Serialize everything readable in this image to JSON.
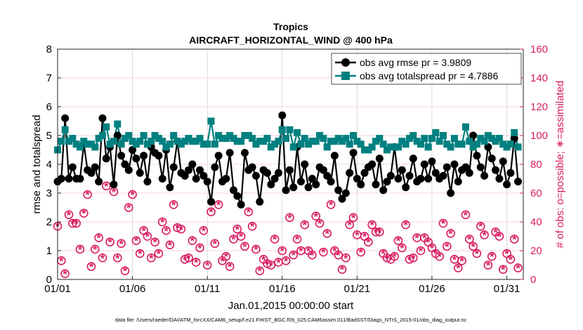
{
  "chart_data": {
    "type": "line",
    "title": "Tropics",
    "subtitle": "AIRCRAFT_HORIZONTAL_WIND @ 400 hPa",
    "xlabel": "Jan.01,2015 00:00:00 start",
    "ylabel": "rmse and totalspread",
    "y2label": "# of obs: o=possible; ∗=assimilated",
    "footnote": "data file: /Users/raeder/DAI/ATM_forcXX/CAM6_setup/f.e21.FHIST_BGC.f09_025.CAM6assim.011/BadSST/Diags_NTrS_2015-01/obs_diag_output.nc",
    "xlim": [
      1,
      32.1
    ],
    "ylim": [
      0,
      8
    ],
    "y2lim": [
      0,
      160
    ],
    "x_step_days": 0.25,
    "x_ticks": [
      1,
      6,
      11,
      16,
      21,
      26,
      31
    ],
    "x_tick_labels": [
      "01/01",
      "01/06",
      "01/11",
      "01/16",
      "01/21",
      "01/26",
      "01/31"
    ],
    "y_ticks": [
      "0",
      "1",
      "2",
      "3",
      "4",
      "5",
      "6",
      "7",
      "8"
    ],
    "y2_ticks": [
      "0",
      "20",
      "40",
      "60",
      "80",
      "100",
      "120",
      "140",
      "160"
    ],
    "grid": true,
    "legend_position": "top-right",
    "colors": {
      "rmse": "#000000",
      "spread": "#008080",
      "count": "#d81b60"
    },
    "series": [
      {
        "name": "obs avg rmse pr = 3.9809",
        "axis": "left",
        "values": [
          3.4,
          3.5,
          5.6,
          3.5,
          3.9,
          3.5,
          3.5,
          4.7,
          3.8,
          3.7,
          3.9,
          3.4,
          5.6,
          4.2,
          4.6,
          3.3,
          5.0,
          4.3,
          4.0,
          3.8,
          4.5,
          4.2,
          3.7,
          4.3,
          3.4,
          4.6,
          4.4,
          4.3,
          3.5,
          4.5,
          3.2,
          3.9,
          4.8,
          3.7,
          3.6,
          3.8,
          4.0,
          3.5,
          3.8,
          3.6,
          3.4,
          2.7,
          3.9,
          4.3,
          3.4,
          3.5,
          4.4,
          3.1,
          2.9,
          2.6,
          4.4,
          3.8,
          3.9,
          3.6,
          2.7,
          3.8,
          3.7,
          3.3,
          3.5,
          3.7,
          5.7,
          3.1,
          3.8,
          3.2,
          4.6,
          3.4,
          4.0,
          3.2,
          3.5,
          3.3,
          3.9,
          3.8,
          3.6,
          3.4,
          4.3,
          3.1,
          2.8,
          3.0,
          3.7,
          4.4,
          3.5,
          3.3,
          3.7,
          3.9,
          4.0,
          3.3,
          4.2,
          3.1,
          3.4,
          3.6,
          4.6,
          3.5,
          3.8,
          3.2,
          3.6,
          4.2,
          3.4,
          3.5,
          4.0,
          3.5,
          4.1,
          3.7,
          3.5,
          3.6,
          3.9,
          3.0,
          4.0,
          3.4,
          3.8,
          3.9,
          3.7,
          5.0,
          4.3,
          3.9,
          3.6,
          4.6,
          4.2,
          3.8,
          3.5,
          4.1,
          3.3,
          3.7,
          4.9,
          3.4
        ]
      },
      {
        "name": "obs avg totalspread pr = 4.7886",
        "axis": "left",
        "values": [
          4.5,
          4.8,
          5.2,
          4.8,
          4.9,
          4.7,
          4.6,
          4.8,
          4.7,
          4.7,
          4.6,
          4.9,
          5.0,
          5.3,
          4.7,
          4.8,
          5.4,
          4.7,
          4.9,
          5.0,
          4.8,
          4.7,
          4.8,
          5.0,
          4.7,
          4.8,
          5.0,
          4.9,
          4.8,
          4.6,
          4.7,
          5.0,
          4.8,
          4.7,
          4.8,
          4.9,
          4.8,
          4.8,
          4.9,
          4.7,
          4.7,
          5.5,
          4.7,
          5.0,
          4.9,
          4.9,
          5.0,
          4.9,
          4.8,
          4.8,
          5.0,
          5.0,
          4.9,
          4.7,
          4.8,
          4.8,
          4.9,
          4.6,
          4.7,
          4.8,
          5.2,
          4.9,
          5.2,
          4.6,
          5.1,
          4.7,
          4.9,
          4.7,
          4.8,
          4.8,
          5.0,
          4.9,
          4.6,
          4.8,
          4.8,
          4.9,
          4.8,
          4.9,
          4.7,
          5.0,
          4.8,
          4.7,
          4.5,
          4.5,
          4.6,
          4.8,
          4.9,
          4.7,
          4.5,
          4.6,
          4.6,
          4.6,
          4.8,
          4.7,
          4.9,
          5.0,
          4.8,
          4.7,
          4.9,
          4.6,
          4.9,
          5.1,
          4.8,
          5.0,
          4.7,
          4.6,
          4.9,
          4.7,
          4.7,
          5.3,
          4.8,
          4.6,
          4.7,
          4.9,
          4.8,
          5.0,
          4.9,
          4.8,
          4.9,
          4.7,
          4.6,
          4.7,
          5.1,
          4.6
        ]
      },
      {
        "name": "possible",
        "axis": "right",
        "values": [
          37,
          13,
          4,
          45,
          39,
          39,
          21,
          46,
          59,
          9,
          21,
          29,
          15,
          65,
          26,
          61,
          15,
          25,
          6,
          50,
          59,
          27,
          18,
          34,
          30,
          15,
          26,
          18,
          40,
          34,
          24,
          52,
          36,
          35,
          14,
          15,
          27,
          12,
          22,
          34,
          10,
          47,
          25,
          52,
          13,
          16,
          9,
          28,
          35,
          30,
          23,
          47,
          37,
          21,
          6,
          14,
          11,
          10,
          28,
          12,
          20,
          13,
          43,
          17,
          28,
          20,
          38,
          20,
          17,
          44,
          39,
          19,
          32,
          52,
          20,
          17,
          7,
          15,
          38,
          43,
          31,
          19,
          30,
          26,
          38,
          33,
          33,
          18,
          15,
          14,
          16,
          27,
          22,
          38,
          14,
          15,
          29,
          20,
          29,
          26,
          22,
          18,
          16,
          39,
          23,
          32,
          14,
          8,
          13,
          45,
          28,
          23,
          18,
          37,
          31,
          10,
          16,
          33,
          30,
          7,
          18,
          14,
          28,
          8
        ]
      },
      {
        "name": "assimilated",
        "axis": "right",
        "values": [
          37,
          13,
          4,
          45,
          39,
          39,
          21,
          46,
          59,
          9,
          21,
          29,
          15,
          65,
          26,
          61,
          15,
          25,
          6,
          50,
          59,
          27,
          18,
          34,
          30,
          15,
          26,
          18,
          40,
          34,
          24,
          52,
          36,
          35,
          14,
          15,
          27,
          12,
          22,
          34,
          10,
          47,
          25,
          52,
          13,
          16,
          9,
          28,
          35,
          30,
          23,
          47,
          37,
          21,
          6,
          14,
          11,
          10,
          28,
          12,
          20,
          13,
          43,
          17,
          28,
          20,
          38,
          20,
          17,
          44,
          39,
          19,
          32,
          52,
          20,
          17,
          7,
          15,
          38,
          43,
          31,
          19,
          30,
          26,
          38,
          33,
          33,
          18,
          15,
          14,
          16,
          27,
          22,
          38,
          14,
          15,
          29,
          20,
          29,
          26,
          22,
          18,
          16,
          39,
          23,
          32,
          14,
          8,
          13,
          45,
          28,
          23,
          18,
          37,
          31,
          10,
          16,
          33,
          30,
          7,
          18,
          14,
          28,
          8
        ]
      }
    ]
  }
}
